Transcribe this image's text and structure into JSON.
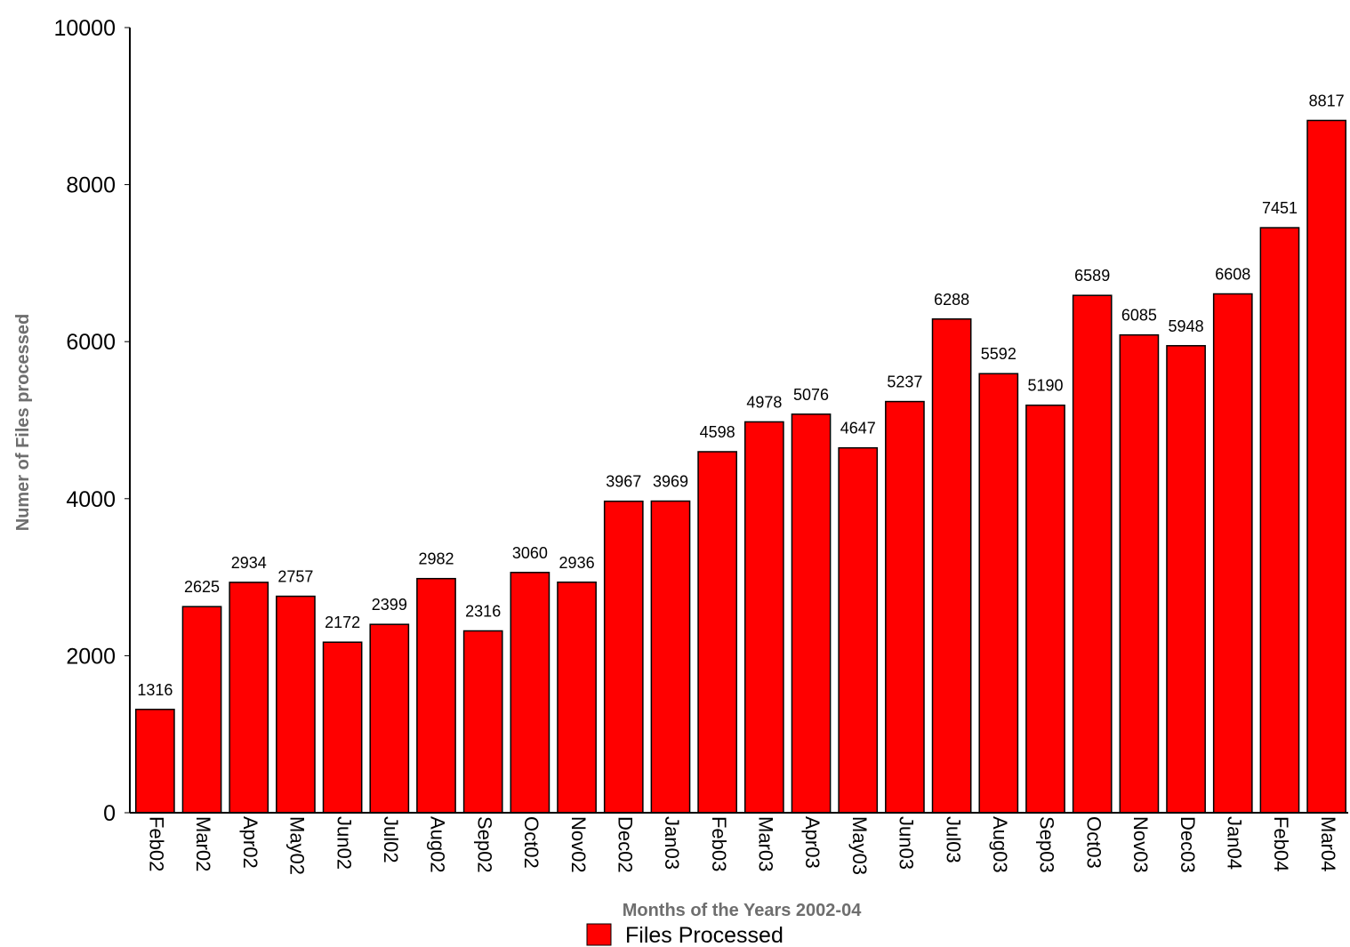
{
  "chart_data": {
    "type": "bar",
    "categories": [
      "Feb02",
      "Mar02",
      "Apr02",
      "May02",
      "Jun02",
      "Jul02",
      "Aug02",
      "Sep02",
      "Oct02",
      "Nov02",
      "Dec02",
      "Jan03",
      "Feb03",
      "Mar03",
      "Apr03",
      "May03",
      "Jun03",
      "Jul03",
      "Aug03",
      "Sep03",
      "Oct03",
      "Nov03",
      "Dec03",
      "Jan04",
      "Feb04",
      "Mar04"
    ],
    "series": [
      {
        "name": "Files Processed",
        "values": [
          1316,
          2625,
          2934,
          2757,
          2172,
          2399,
          2982,
          2316,
          3060,
          2936,
          3967,
          3969,
          4598,
          4978,
          5076,
          4647,
          5237,
          6288,
          5592,
          5190,
          6589,
          6085,
          5948,
          6608,
          7451,
          8817
        ],
        "color": "#ff0000"
      }
    ],
    "xlabel": "Months of the Years 2002-04",
    "ylabel": "Numer of Files processed",
    "ylim": [
      0,
      10000
    ],
    "yticks": [
      0,
      2000,
      4000,
      6000,
      8000,
      10000
    ],
    "grid": false,
    "legend": "bottom-center"
  }
}
